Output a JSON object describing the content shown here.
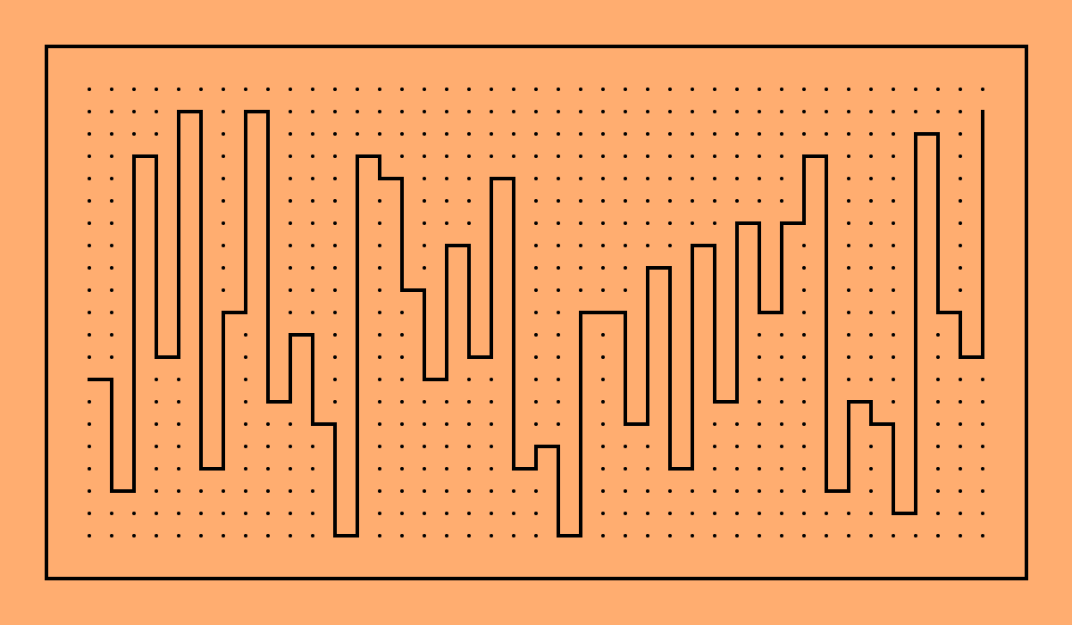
{
  "colors": {
    "background": "#ffad70",
    "frame": "#000000",
    "dots": "#000000",
    "path": "#000000"
  },
  "grid": {
    "columns": 41,
    "rows": 21
  },
  "path_cells": [
    [
      0,
      13
    ],
    [
      1,
      13
    ],
    [
      1,
      18
    ],
    [
      2,
      18
    ],
    [
      2,
      3
    ],
    [
      3,
      3
    ],
    [
      3,
      12
    ],
    [
      4,
      12
    ],
    [
      4,
      1
    ],
    [
      5,
      1
    ],
    [
      5,
      17
    ],
    [
      6,
      17
    ],
    [
      6,
      10
    ],
    [
      7,
      10
    ],
    [
      7,
      1
    ],
    [
      8,
      1
    ],
    [
      8,
      14
    ],
    [
      9,
      14
    ],
    [
      9,
      11
    ],
    [
      10,
      11
    ],
    [
      10,
      15
    ],
    [
      11,
      15
    ],
    [
      11,
      20
    ],
    [
      12,
      20
    ],
    [
      12,
      3
    ],
    [
      13,
      3
    ],
    [
      13,
      4
    ],
    [
      14,
      4
    ],
    [
      14,
      9
    ],
    [
      15,
      9
    ],
    [
      15,
      13
    ],
    [
      16,
      13
    ],
    [
      16,
      7
    ],
    [
      17,
      7
    ],
    [
      17,
      12
    ],
    [
      18,
      12
    ],
    [
      18,
      4
    ],
    [
      19,
      4
    ],
    [
      19,
      17
    ],
    [
      20,
      17
    ],
    [
      20,
      16
    ],
    [
      21,
      16
    ],
    [
      21,
      20
    ],
    [
      22,
      20
    ],
    [
      22,
      10
    ],
    [
      24,
      10
    ],
    [
      24,
      15
    ],
    [
      25,
      15
    ],
    [
      25,
      8
    ],
    [
      26,
      8
    ],
    [
      26,
      17
    ],
    [
      27,
      17
    ],
    [
      27,
      7
    ],
    [
      28,
      7
    ],
    [
      28,
      14
    ],
    [
      29,
      14
    ],
    [
      29,
      6
    ],
    [
      30,
      6
    ],
    [
      30,
      10
    ],
    [
      31,
      10
    ],
    [
      31,
      6
    ],
    [
      32,
      6
    ],
    [
      32,
      3
    ],
    [
      33,
      3
    ],
    [
      33,
      18
    ],
    [
      34,
      18
    ],
    [
      34,
      14
    ],
    [
      35,
      14
    ],
    [
      35,
      15
    ],
    [
      36,
      15
    ],
    [
      36,
      19
    ],
    [
      37,
      19
    ],
    [
      37,
      2
    ],
    [
      38,
      2
    ],
    [
      38,
      10
    ],
    [
      39,
      10
    ],
    [
      39,
      12
    ],
    [
      40,
      12
    ],
    [
      40,
      1
    ]
  ]
}
